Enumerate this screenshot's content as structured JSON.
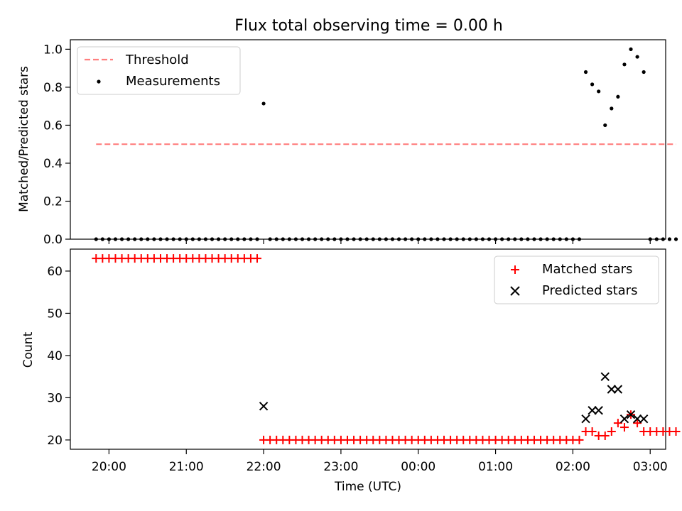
{
  "chart_data": [
    {
      "type": "scatter",
      "title": "Flux total observing time = 0.00 h",
      "xlabel": "",
      "ylabel": "Matched/Predicted stars",
      "ylim": [
        0.0,
        1.05
      ],
      "yticks": [
        0.0,
        0.2,
        0.4,
        0.6,
        0.8,
        1.0
      ],
      "ytick_labels": [
        "0.0",
        "0.2",
        "0.4",
        "0.6",
        "0.8",
        "1.0"
      ],
      "xlim_hours": [
        19.5,
        27.2
      ],
      "grid": false,
      "legend_position": "top-left",
      "series": [
        {
          "name": "Threshold",
          "style": "dashed-line",
          "color": "#ff7f7f",
          "x": [
            "19:50",
            "03:20"
          ],
          "y": [
            0.5,
            0.5
          ]
        },
        {
          "name": "Measurements",
          "style": "dot",
          "color": "#000000",
          "points": [
            [
              "19:50",
              0.0
            ],
            [
              "19:55",
              0.0
            ],
            [
              "20:00",
              0.0
            ],
            [
              "20:05",
              0.0
            ],
            [
              "20:10",
              0.0
            ],
            [
              "20:15",
              0.0
            ],
            [
              "20:20",
              0.0
            ],
            [
              "20:25",
              0.0
            ],
            [
              "20:30",
              0.0
            ],
            [
              "20:35",
              0.0
            ],
            [
              "20:40",
              0.0
            ],
            [
              "20:45",
              0.0
            ],
            [
              "20:50",
              0.0
            ],
            [
              "20:55",
              0.0
            ],
            [
              "21:00",
              0.0
            ],
            [
              "21:05",
              0.0
            ],
            [
              "21:10",
              0.0
            ],
            [
              "21:15",
              0.0
            ],
            [
              "21:20",
              0.0
            ],
            [
              "21:25",
              0.0
            ],
            [
              "21:30",
              0.0
            ],
            [
              "21:35",
              0.0
            ],
            [
              "21:40",
              0.0
            ],
            [
              "21:45",
              0.0
            ],
            [
              "21:50",
              0.0
            ],
            [
              "21:55",
              0.0
            ],
            [
              "22:00",
              0.714
            ],
            [
              "22:05",
              0.0
            ],
            [
              "22:10",
              0.0
            ],
            [
              "22:15",
              0.0
            ],
            [
              "22:20",
              0.0
            ],
            [
              "22:25",
              0.0
            ],
            [
              "22:30",
              0.0
            ],
            [
              "22:35",
              0.0
            ],
            [
              "22:40",
              0.0
            ],
            [
              "22:45",
              0.0
            ],
            [
              "22:50",
              0.0
            ],
            [
              "22:55",
              0.0
            ],
            [
              "23:00",
              0.0
            ],
            [
              "23:05",
              0.0
            ],
            [
              "23:10",
              0.0
            ],
            [
              "23:15",
              0.0
            ],
            [
              "23:20",
              0.0
            ],
            [
              "23:25",
              0.0
            ],
            [
              "23:30",
              0.0
            ],
            [
              "23:35",
              0.0
            ],
            [
              "23:40",
              0.0
            ],
            [
              "23:45",
              0.0
            ],
            [
              "23:50",
              0.0
            ],
            [
              "23:55",
              0.0
            ],
            [
              "00:00",
              0.0
            ],
            [
              "00:05",
              0.0
            ],
            [
              "00:10",
              0.0
            ],
            [
              "00:15",
              0.0
            ],
            [
              "00:20",
              0.0
            ],
            [
              "00:25",
              0.0
            ],
            [
              "00:30",
              0.0
            ],
            [
              "00:35",
              0.0
            ],
            [
              "00:40",
              0.0
            ],
            [
              "00:45",
              0.0
            ],
            [
              "00:50",
              0.0
            ],
            [
              "00:55",
              0.0
            ],
            [
              "01:00",
              0.0
            ],
            [
              "01:05",
              0.0
            ],
            [
              "01:10",
              0.0
            ],
            [
              "01:15",
              0.0
            ],
            [
              "01:20",
              0.0
            ],
            [
              "01:25",
              0.0
            ],
            [
              "01:30",
              0.0
            ],
            [
              "01:35",
              0.0
            ],
            [
              "01:40",
              0.0
            ],
            [
              "01:45",
              0.0
            ],
            [
              "01:50",
              0.0
            ],
            [
              "01:55",
              0.0
            ],
            [
              "02:00",
              0.0
            ],
            [
              "02:05",
              0.0
            ],
            [
              "02:10",
              0.88
            ],
            [
              "02:15",
              0.815
            ],
            [
              "02:20",
              0.778
            ],
            [
              "02:25",
              0.6
            ],
            [
              "02:30",
              0.688
            ],
            [
              "02:35",
              0.75
            ],
            [
              "02:40",
              0.92
            ],
            [
              "02:45",
              1.0
            ],
            [
              "02:50",
              0.96
            ],
            [
              "02:55",
              0.88
            ],
            [
              "03:00",
              0.0
            ],
            [
              "03:05",
              0.0
            ],
            [
              "03:10",
              0.0
            ],
            [
              "03:15",
              0.0
            ],
            [
              "03:20",
              0.0
            ]
          ]
        }
      ]
    },
    {
      "type": "scatter",
      "title": "",
      "xlabel": "Time (UTC)",
      "ylabel": "Count",
      "ylim": [
        17.8,
        65.2
      ],
      "yticks": [
        20,
        30,
        40,
        50,
        60
      ],
      "ytick_labels": [
        "20",
        "30",
        "40",
        "50",
        "60"
      ],
      "xlim_hours": [
        19.5,
        27.2
      ],
      "xticks": [
        "20:00",
        "21:00",
        "22:00",
        "23:00",
        "00:00",
        "01:00",
        "02:00",
        "03:00"
      ],
      "grid": false,
      "legend_position": "top-right",
      "series": [
        {
          "name": "Matched stars",
          "style": "plus",
          "color": "#ff0000",
          "points": [
            [
              "19:50",
              63
            ],
            [
              "19:55",
              63
            ],
            [
              "20:00",
              63
            ],
            [
              "20:05",
              63
            ],
            [
              "20:10",
              63
            ],
            [
              "20:15",
              63
            ],
            [
              "20:20",
              63
            ],
            [
              "20:25",
              63
            ],
            [
              "20:30",
              63
            ],
            [
              "20:35",
              63
            ],
            [
              "20:40",
              63
            ],
            [
              "20:45",
              63
            ],
            [
              "20:50",
              63
            ],
            [
              "20:55",
              63
            ],
            [
              "21:00",
              63
            ],
            [
              "21:05",
              63
            ],
            [
              "21:10",
              63
            ],
            [
              "21:15",
              63
            ],
            [
              "21:20",
              63
            ],
            [
              "21:25",
              63
            ],
            [
              "21:30",
              63
            ],
            [
              "21:35",
              63
            ],
            [
              "21:40",
              63
            ],
            [
              "21:45",
              63
            ],
            [
              "21:50",
              63
            ],
            [
              "21:55",
              63
            ],
            [
              "22:00",
              20
            ],
            [
              "22:05",
              20
            ],
            [
              "22:10",
              20
            ],
            [
              "22:15",
              20
            ],
            [
              "22:20",
              20
            ],
            [
              "22:25",
              20
            ],
            [
              "22:30",
              20
            ],
            [
              "22:35",
              20
            ],
            [
              "22:40",
              20
            ],
            [
              "22:45",
              20
            ],
            [
              "22:50",
              20
            ],
            [
              "22:55",
              20
            ],
            [
              "23:00",
              20
            ],
            [
              "23:05",
              20
            ],
            [
              "23:10",
              20
            ],
            [
              "23:15",
              20
            ],
            [
              "23:20",
              20
            ],
            [
              "23:25",
              20
            ],
            [
              "23:30",
              20
            ],
            [
              "23:35",
              20
            ],
            [
              "23:40",
              20
            ],
            [
              "23:45",
              20
            ],
            [
              "23:50",
              20
            ],
            [
              "23:55",
              20
            ],
            [
              "00:00",
              20
            ],
            [
              "00:05",
              20
            ],
            [
              "00:10",
              20
            ],
            [
              "00:15",
              20
            ],
            [
              "00:20",
              20
            ],
            [
              "00:25",
              20
            ],
            [
              "00:30",
              20
            ],
            [
              "00:35",
              20
            ],
            [
              "00:40",
              20
            ],
            [
              "00:45",
              20
            ],
            [
              "00:50",
              20
            ],
            [
              "00:55",
              20
            ],
            [
              "01:00",
              20
            ],
            [
              "01:05",
              20
            ],
            [
              "01:10",
              20
            ],
            [
              "01:15",
              20
            ],
            [
              "01:20",
              20
            ],
            [
              "01:25",
              20
            ],
            [
              "01:30",
              20
            ],
            [
              "01:35",
              20
            ],
            [
              "01:40",
              20
            ],
            [
              "01:45",
              20
            ],
            [
              "01:50",
              20
            ],
            [
              "01:55",
              20
            ],
            [
              "02:00",
              20
            ],
            [
              "02:05",
              20
            ],
            [
              "02:10",
              22
            ],
            [
              "02:15",
              22
            ],
            [
              "02:20",
              21
            ],
            [
              "02:25",
              21
            ],
            [
              "02:30",
              22
            ],
            [
              "02:35",
              24
            ],
            [
              "02:40",
              23
            ],
            [
              "02:45",
              26
            ],
            [
              "02:50",
              24
            ],
            [
              "02:55",
              22
            ],
            [
              "03:00",
              22
            ],
            [
              "03:05",
              22
            ],
            [
              "03:10",
              22
            ],
            [
              "03:15",
              22
            ],
            [
              "03:20",
              22
            ]
          ]
        },
        {
          "name": "Predicted stars",
          "style": "x",
          "color": "#000000",
          "points": [
            [
              "22:00",
              28
            ],
            [
              "02:10",
              25
            ],
            [
              "02:15",
              27
            ],
            [
              "02:20",
              27
            ],
            [
              "02:25",
              35
            ],
            [
              "02:30",
              32
            ],
            [
              "02:35",
              32
            ],
            [
              "02:40",
              25
            ],
            [
              "02:45",
              26
            ],
            [
              "02:50",
              25
            ],
            [
              "02:55",
              25
            ]
          ]
        }
      ]
    }
  ]
}
